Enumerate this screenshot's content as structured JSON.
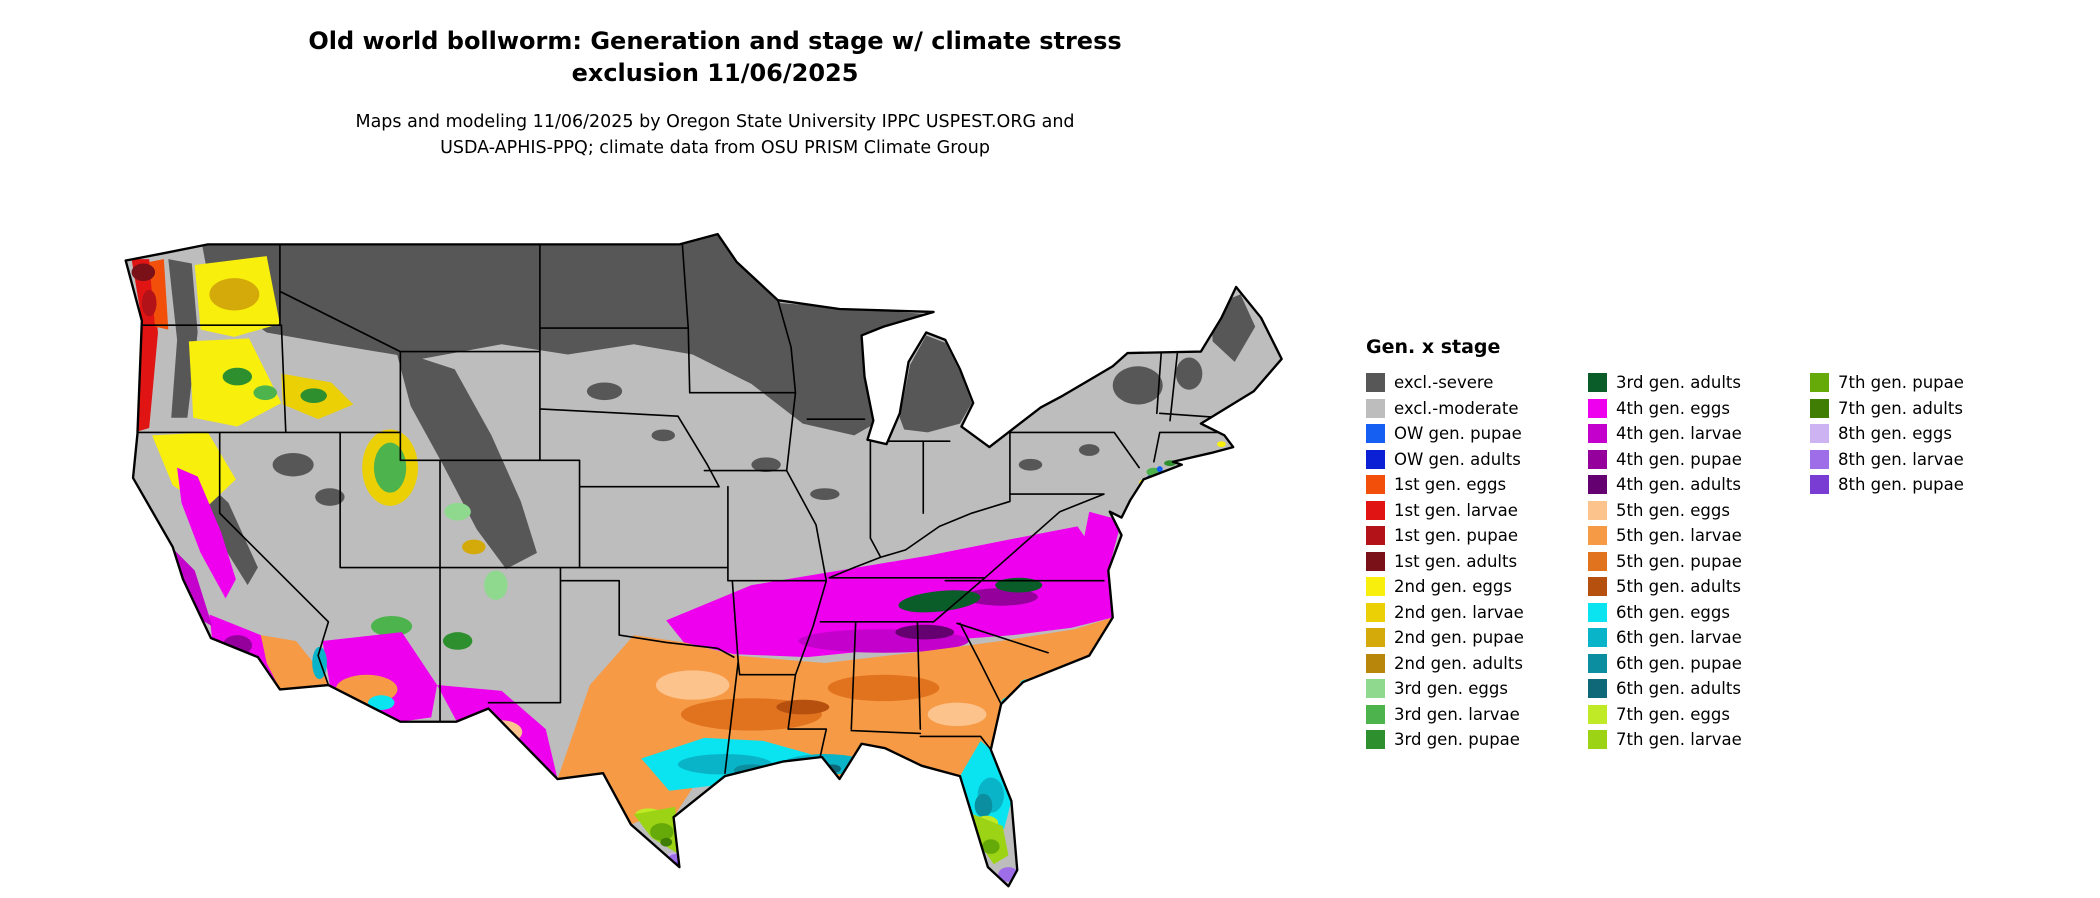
{
  "header": {
    "title_line1": "Old world bollworm: Generation and stage w/ climate stress",
    "title_line2": "exclusion 11/06/2025",
    "subtitle_line1": "Maps and modeling 11/06/2025 by Oregon State University IPPC USPEST.ORG and",
    "subtitle_line2": "USDA-APHIS-PPQ; climate data from OSU PRISM Climate Group"
  },
  "legend": {
    "title": "Gen. x stage",
    "columns": [
      [
        {
          "label": "excl.-severe",
          "color": "excl_severe"
        },
        {
          "label": "excl.-moderate",
          "color": "excl_moderate"
        },
        {
          "label": "OW gen. pupae",
          "color": "ow_pupae"
        },
        {
          "label": "OW gen. adults",
          "color": "ow_adults"
        },
        {
          "label": "1st gen. eggs",
          "color": "g1_eggs"
        },
        {
          "label": "1st gen. larvae",
          "color": "g1_larvae"
        },
        {
          "label": "1st gen. pupae",
          "color": "g1_pupae"
        },
        {
          "label": "1st gen. adults",
          "color": "g1_adults"
        },
        {
          "label": "2nd gen. eggs",
          "color": "g2_eggs"
        },
        {
          "label": "2nd gen. larvae",
          "color": "g2_larvae"
        },
        {
          "label": "2nd gen. pupae",
          "color": "g2_pupae"
        },
        {
          "label": "2nd gen. adults",
          "color": "g2_adults"
        },
        {
          "label": "3rd gen. eggs",
          "color": "g3_eggs"
        },
        {
          "label": "3rd gen. larvae",
          "color": "g3_larvae"
        },
        {
          "label": "3rd gen. pupae",
          "color": "g3_pupae"
        }
      ],
      [
        {
          "label": "3rd gen. adults",
          "color": "g3_adults"
        },
        {
          "label": "4th gen. eggs",
          "color": "g4_eggs"
        },
        {
          "label": "4th gen. larvae",
          "color": "g4_larvae"
        },
        {
          "label": "4th gen. pupae",
          "color": "g4_pupae"
        },
        {
          "label": "4th gen. adults",
          "color": "g4_adults"
        },
        {
          "label": "5th gen. eggs",
          "color": "g5_eggs"
        },
        {
          "label": "5th gen. larvae",
          "color": "g5_larvae"
        },
        {
          "label": "5th gen. pupae",
          "color": "g5_pupae"
        },
        {
          "label": "5th gen. adults",
          "color": "g5_adults"
        },
        {
          "label": "6th gen. eggs",
          "color": "g6_eggs"
        },
        {
          "label": "6th gen. larvae",
          "color": "g6_larvae"
        },
        {
          "label": "6th gen. pupae",
          "color": "g6_pupae"
        },
        {
          "label": "6th gen. adults",
          "color": "g6_adults"
        },
        {
          "label": "7th gen. eggs",
          "color": "g7_eggs"
        },
        {
          "label": "7th gen. larvae",
          "color": "g7_larvae"
        }
      ],
      [
        {
          "label": "7th gen. pupae",
          "color": "g7_pupae"
        },
        {
          "label": "7th gen. adults",
          "color": "g7_adults"
        },
        {
          "label": "8th gen. eggs",
          "color": "g8_eggs"
        },
        {
          "label": "8th gen. larvae",
          "color": "g8_larvae"
        },
        {
          "label": "8th gen. pupae",
          "color": "g8_pupae"
        }
      ]
    ]
  },
  "palette": {
    "excl_severe": "#575757",
    "excl_moderate": "#bdbdbd",
    "ow_pupae": "#1560f2",
    "ow_adults": "#0b1fd4",
    "g1_eggs": "#f2500a",
    "g1_larvae": "#e11414",
    "g1_pupae": "#b21218",
    "g1_adults": "#7a1018",
    "g2_eggs": "#f8ef0c",
    "g2_larvae": "#ecd006",
    "g2_pupae": "#d4a90a",
    "g2_adults": "#b8860b",
    "g3_eggs": "#8fd98f",
    "g3_larvae": "#4db34d",
    "g3_pupae": "#2d8f2d",
    "g3_adults": "#0a5c28",
    "g4_eggs": "#ee00ee",
    "g4_larvae": "#c400cc",
    "g4_pupae": "#95009d",
    "g4_adults": "#650070",
    "g5_eggs": "#fdc38d",
    "g5_larvae": "#f69a46",
    "g5_pupae": "#e1731f",
    "g5_adults": "#b5500f",
    "g6_eggs": "#0ae4f0",
    "g6_larvae": "#0ab4c8",
    "g6_pupae": "#0b8fa0",
    "g6_adults": "#0e6878",
    "g7_eggs": "#c0ea26",
    "g7_larvae": "#9cd415",
    "g7_pupae": "#66aa0a",
    "g7_adults": "#3f7d04",
    "g8_eggs": "#cdb3f2",
    "g8_larvae": "#9e6ee8",
    "g8_pupae": "#7a3dd4"
  }
}
